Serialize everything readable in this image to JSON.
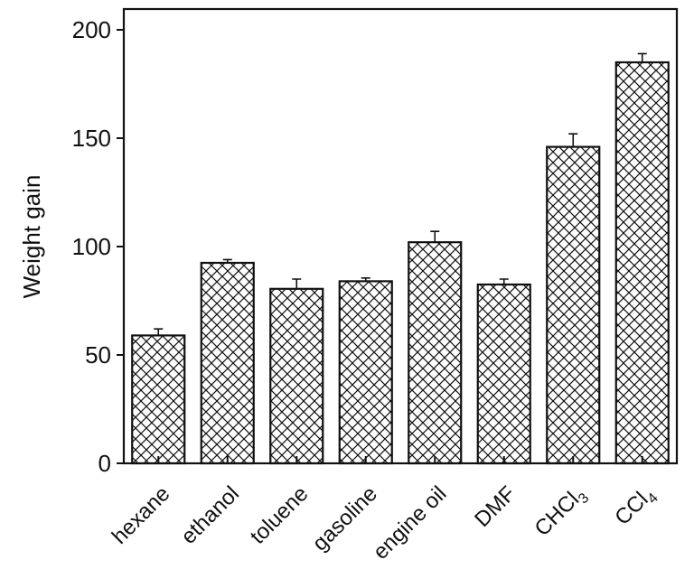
{
  "chart_data": {
    "type": "bar",
    "title": "",
    "xlabel": "",
    "ylabel": "Weight gain",
    "ylim": [
      0,
      200
    ],
    "yticks": [
      0,
      50,
      100,
      150,
      200
    ],
    "categories": [
      {
        "base": "hexane",
        "sub": ""
      },
      {
        "base": "ethanol",
        "sub": ""
      },
      {
        "base": "toluene",
        "sub": ""
      },
      {
        "base": "gasoline",
        "sub": ""
      },
      {
        "base": "engine oil",
        "sub": ""
      },
      {
        "base": "DMF",
        "sub": ""
      },
      {
        "base": "CHCl",
        "sub": "3"
      },
      {
        "base": "CCl",
        "sub": "4"
      }
    ],
    "values": [
      59,
      92.5,
      80.5,
      84,
      102,
      82.5,
      146,
      185
    ],
    "errors": [
      3,
      1.5,
      4.5,
      1.5,
      5,
      2.5,
      6,
      4
    ],
    "bar_pattern": "crosshatch",
    "grid": false,
    "legend": "none"
  }
}
